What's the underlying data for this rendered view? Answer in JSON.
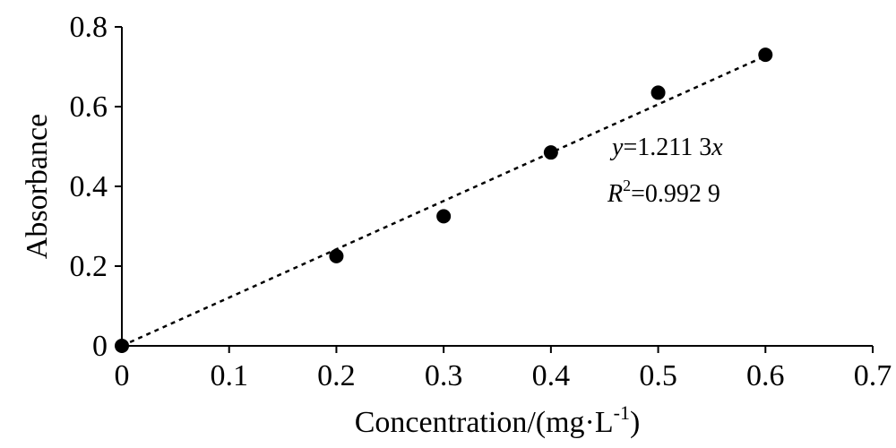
{
  "chart_data": {
    "type": "scatter",
    "title": "",
    "xlabel": "Concentration/(mg·L",
    "xlabel_superscript": "-1",
    "xlabel_suffix": ")",
    "ylabel": "Absorbance",
    "xlim": [
      0,
      0.7
    ],
    "ylim": [
      0,
      0.8
    ],
    "x_ticks": [
      0,
      0.1,
      0.2,
      0.3,
      0.4,
      0.5,
      0.6,
      0.7
    ],
    "x_tick_labels": [
      "0",
      "0.1",
      "0.2",
      "0.3",
      "0.4",
      "0.5",
      "0.6",
      "0.7"
    ],
    "y_ticks": [
      0,
      0.2,
      0.4,
      0.6,
      0.8
    ],
    "y_tick_labels": [
      "0",
      "0.2",
      "0.4",
      "0.6",
      "0.8"
    ],
    "grid": false,
    "series": [
      {
        "x": [
          0,
          0.2,
          0.3,
          0.4,
          0.5,
          0.6
        ],
        "y": [
          0,
          0.225,
          0.325,
          0.485,
          0.635,
          0.73
        ],
        "color": "#000000",
        "marker": "circle"
      }
    ],
    "fit_line": {
      "style": "dashed",
      "slope": 1.2113,
      "intercept": 0,
      "x_range": [
        0,
        0.6
      ]
    },
    "annotations": {
      "equation": {
        "y_symbol": "y",
        "equals_value": "=1.211 3",
        "x_symbol": "x"
      },
      "r_squared": {
        "r_symbol": "R",
        "superscript": "2",
        "equals_value": "=0.992 9"
      }
    }
  }
}
